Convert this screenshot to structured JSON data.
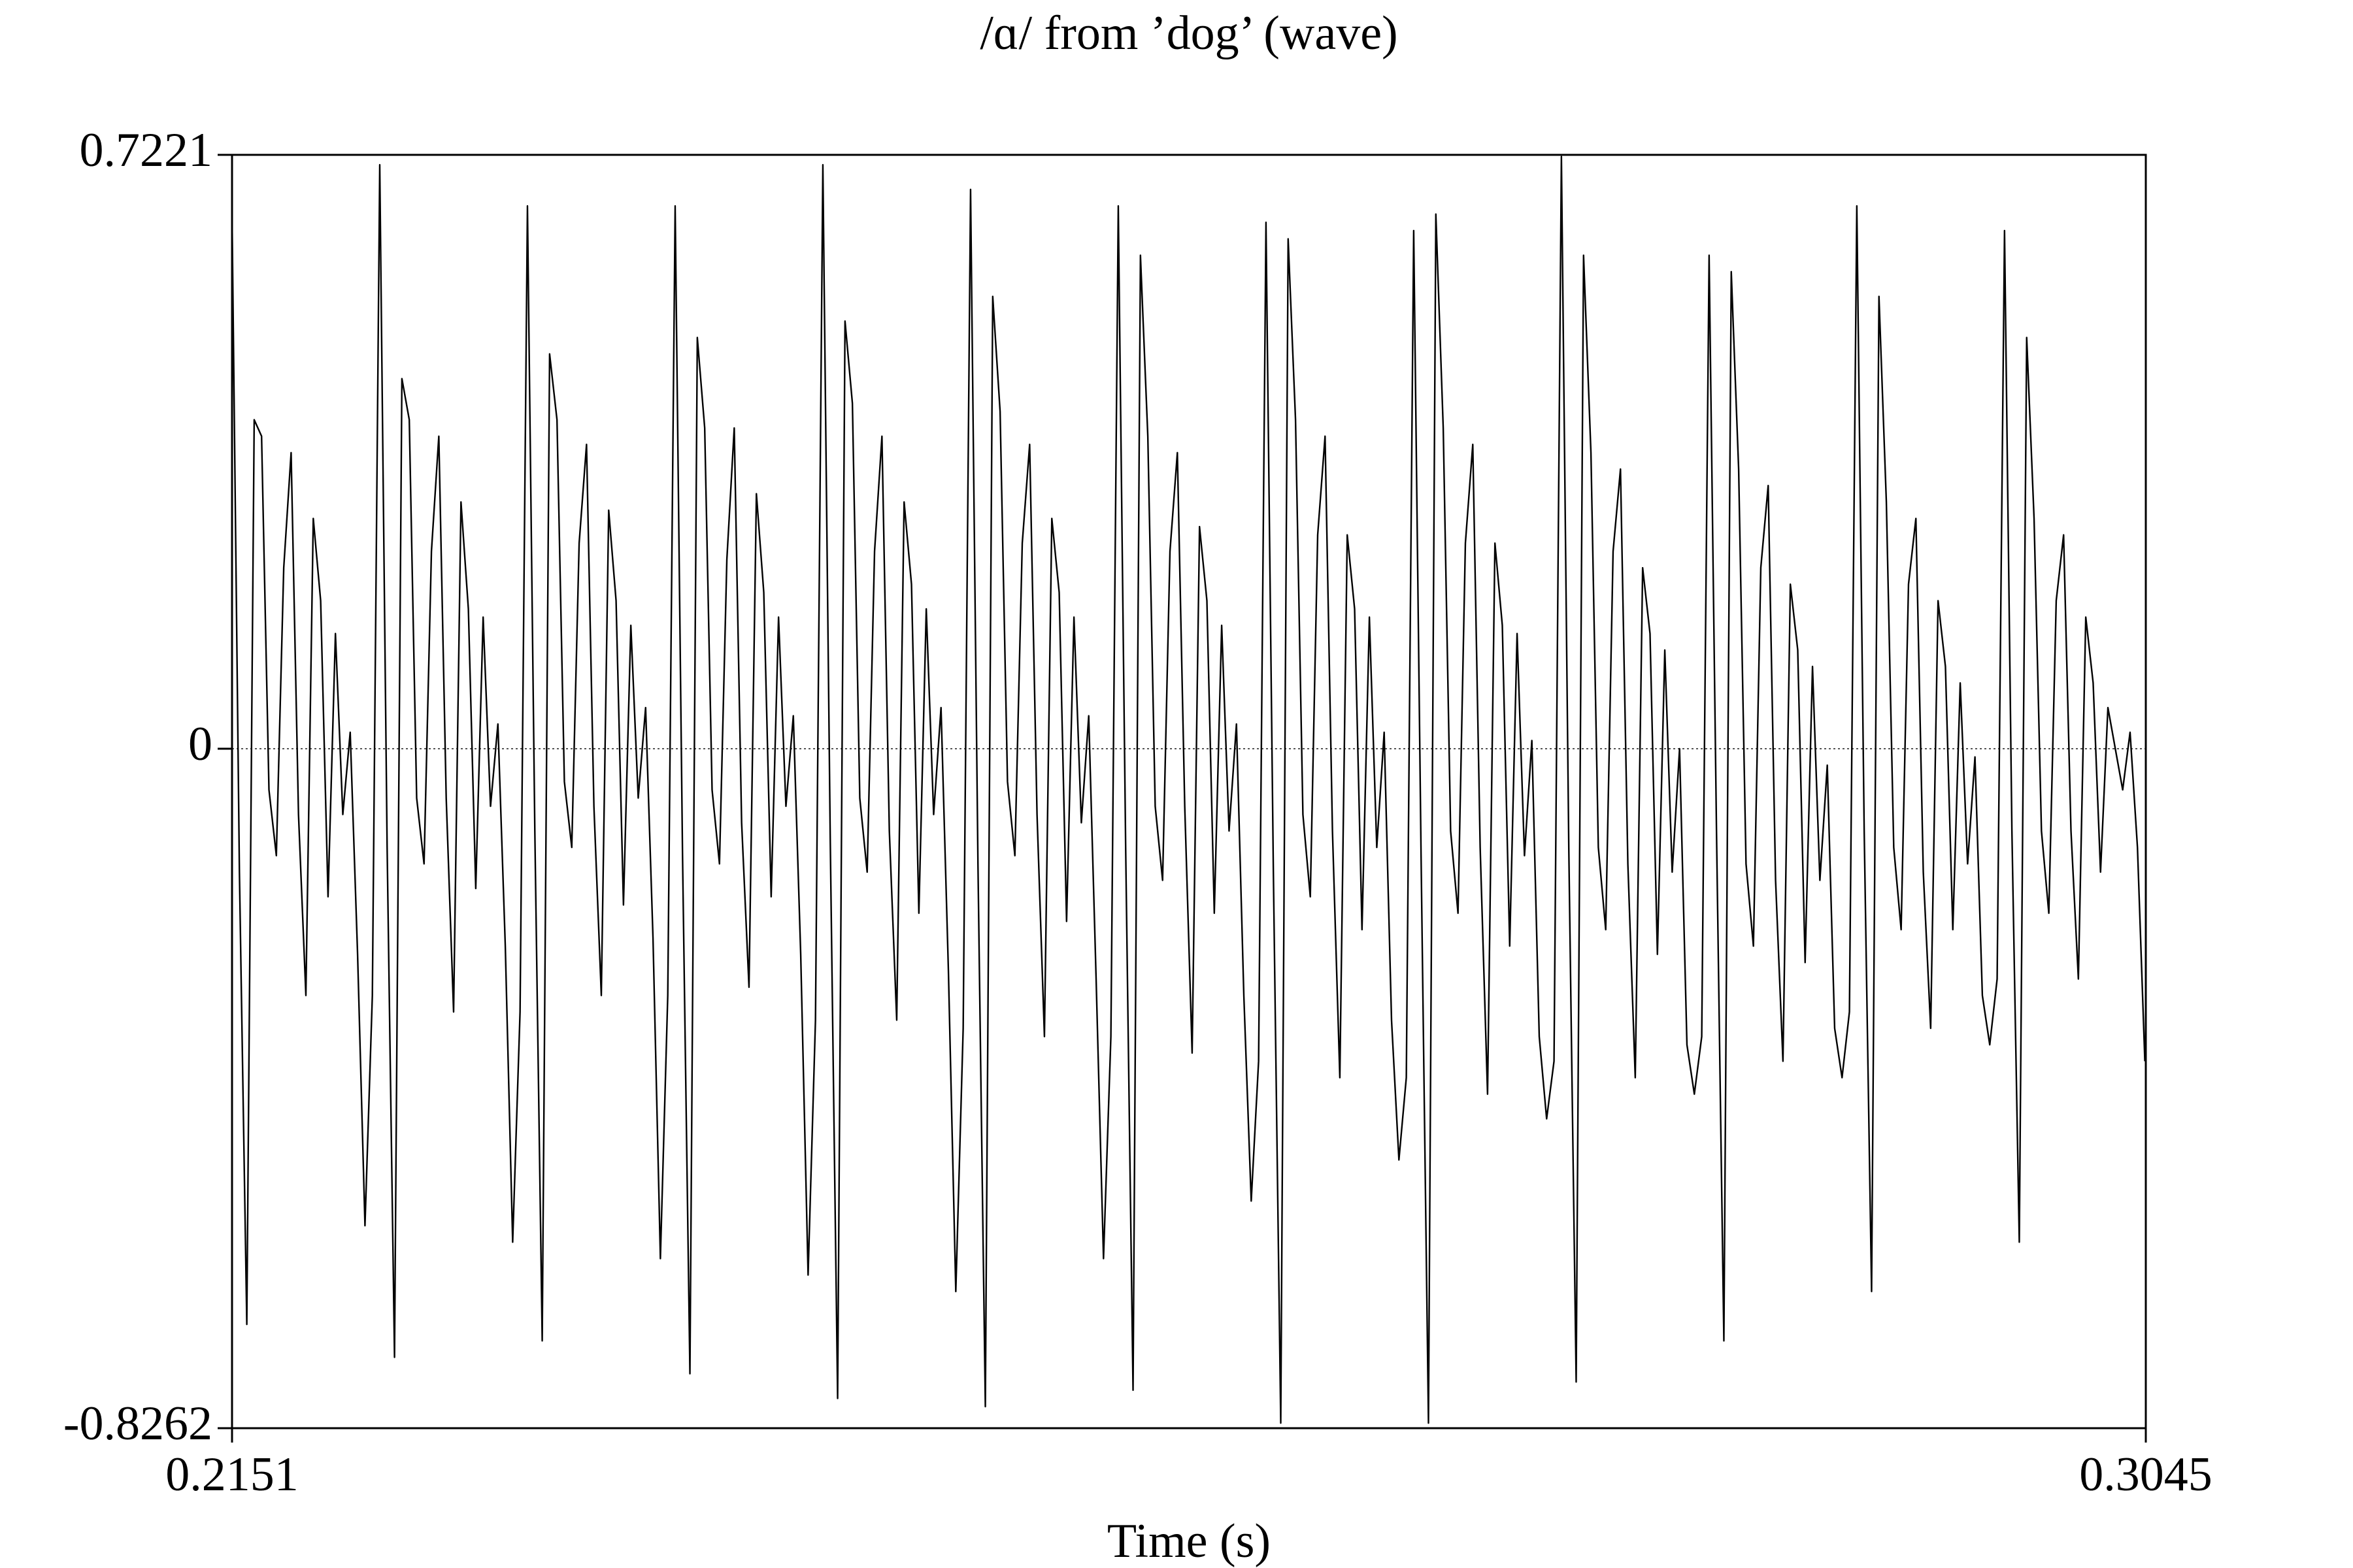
{
  "chart_data": {
    "type": "line",
    "title": "/ɑ/ from ’dog’ (wave)",
    "x_label": "Time (s)",
    "xlim": [
      0.2151,
      0.3045
    ],
    "xticks": [
      0.2151,
      0.3045
    ],
    "ylim": [
      -0.8262,
      0.7221
    ],
    "yticks": [
      -0.8262,
      0,
      0.7221
    ],
    "zero_line": true,
    "series": [
      {
        "color": "#000000",
        "x": [
          0.2151,
          0.215445,
          0.21579,
          0.216135,
          0.21648,
          0.216825,
          0.21717,
          0.217515,
          0.21786,
          0.218205,
          0.21855,
          0.218895,
          0.21924,
          0.219585,
          0.21993,
          0.220275,
          0.22062,
          0.220965,
          0.22131,
          0.221655,
          0.222,
          0.222345,
          0.22269,
          0.223035,
          0.22338,
          0.223725,
          0.22407,
          0.224415,
          0.22476,
          0.225105,
          0.22545,
          0.225795,
          0.22614,
          0.226485,
          0.22683,
          0.227175,
          0.22752,
          0.227865,
          0.22821,
          0.228555,
          0.2289,
          0.229245,
          0.22959,
          0.229935,
          0.23028,
          0.230625,
          0.23097,
          0.231315,
          0.23166,
          0.232005,
          0.23235,
          0.232695,
          0.23304,
          0.233385,
          0.23373,
          0.234075,
          0.23442,
          0.234765,
          0.23511,
          0.235455,
          0.2358,
          0.236145,
          0.23649,
          0.236835,
          0.23718,
          0.237525,
          0.23787,
          0.238215,
          0.23856,
          0.238905,
          0.23925,
          0.239595,
          0.23994,
          0.240285,
          0.24063,
          0.240975,
          0.24132,
          0.241665,
          0.24201,
          0.242355,
          0.2427,
          0.243045,
          0.24339,
          0.243735,
          0.24408,
          0.244425,
          0.24477,
          0.245115,
          0.24546,
          0.245805,
          0.24615,
          0.246495,
          0.24684,
          0.247185,
          0.24753,
          0.247875,
          0.24822,
          0.248565,
          0.24891,
          0.249255,
          0.2496,
          0.249945,
          0.25029,
          0.250635,
          0.25098,
          0.251325,
          0.25167,
          0.252015,
          0.25236,
          0.252705,
          0.25305,
          0.253395,
          0.25374,
          0.254085,
          0.25443,
          0.254775,
          0.25512,
          0.255465,
          0.25581,
          0.256155,
          0.2565,
          0.256845,
          0.25719,
          0.257535,
          0.25788,
          0.258225,
          0.25857,
          0.258915,
          0.25926,
          0.259605,
          0.25995,
          0.260295,
          0.26064,
          0.260985,
          0.26133,
          0.261675,
          0.26202,
          0.262365,
          0.26271,
          0.263055,
          0.2634,
          0.263745,
          0.26409,
          0.264435,
          0.26478,
          0.265125,
          0.26547,
          0.265815,
          0.26616,
          0.266505,
          0.26685,
          0.267195,
          0.26754,
          0.267885,
          0.26823,
          0.268575,
          0.26892,
          0.269265,
          0.26961,
          0.269955,
          0.2703,
          0.270645,
          0.27099,
          0.271335,
          0.27168,
          0.272025,
          0.27237,
          0.272715,
          0.27306,
          0.273405,
          0.27375,
          0.274095,
          0.27444,
          0.274785,
          0.27513,
          0.275475,
          0.27582,
          0.276165,
          0.27651,
          0.276855,
          0.2772,
          0.277545,
          0.27789,
          0.278235,
          0.27858,
          0.278925,
          0.27927,
          0.279615,
          0.27996,
          0.280305,
          0.28065,
          0.280995,
          0.28134,
          0.281685,
          0.28203,
          0.282375,
          0.28272,
          0.283065,
          0.28341,
          0.283755,
          0.2841,
          0.284445,
          0.28479,
          0.285135,
          0.28548,
          0.285825,
          0.28617,
          0.286515,
          0.28686,
          0.287205,
          0.28755,
          0.287895,
          0.28824,
          0.288585,
          0.28893,
          0.289275,
          0.28962,
          0.289965,
          0.29031,
          0.290655,
          0.291,
          0.291345,
          0.29169,
          0.292035,
          0.29238,
          0.292725,
          0.29307,
          0.293415,
          0.29376,
          0.294105,
          0.29445,
          0.294795,
          0.29514,
          0.295485,
          0.29583,
          0.296175,
          0.29652,
          0.296865,
          0.29721,
          0.297555,
          0.2979,
          0.298245,
          0.29859,
          0.298935,
          0.29928,
          0.299625,
          0.29997,
          0.300315,
          0.30066,
          0.301005,
          0.30135,
          0.301695,
          0.30204,
          0.302385,
          0.30273,
          0.303075,
          0.30342,
          0.303765,
          0.30411,
          0.304455
        ],
        "values": [
          0.65,
          -0.15,
          -0.7,
          0.4,
          0.38,
          -0.05,
          -0.13,
          0.22,
          0.36,
          -0.08,
          -0.3,
          0.28,
          0.18,
          -0.18,
          0.14,
          -0.08,
          0.02,
          -0.25,
          -0.58,
          -0.3,
          0.71,
          -0.12,
          -0.74,
          0.45,
          0.4,
          -0.06,
          -0.14,
          0.24,
          0.38,
          -0.06,
          -0.32,
          0.3,
          0.17,
          -0.17,
          0.16,
          -0.07,
          0.03,
          -0.24,
          -0.6,
          -0.32,
          0.66,
          -0.1,
          -0.72,
          0.48,
          0.4,
          -0.04,
          -0.12,
          0.25,
          0.37,
          -0.07,
          -0.3,
          0.29,
          0.18,
          -0.19,
          0.15,
          -0.06,
          0.05,
          -0.23,
          -0.62,
          -0.3,
          0.66,
          -0.13,
          -0.76,
          0.5,
          0.39,
          -0.05,
          -0.14,
          0.23,
          0.39,
          -0.09,
          -0.29,
          0.31,
          0.19,
          -0.18,
          0.16,
          -0.07,
          0.04,
          -0.25,
          -0.64,
          -0.33,
          0.71,
          -0.11,
          -0.79,
          0.52,
          0.42,
          -0.06,
          -0.15,
          0.24,
          0.38,
          -0.1,
          -0.33,
          0.3,
          0.2,
          -0.2,
          0.17,
          -0.08,
          0.05,
          -0.27,
          -0.66,
          -0.34,
          0.68,
          -0.14,
          -0.8,
          0.55,
          0.41,
          -0.04,
          -0.13,
          0.25,
          0.37,
          -0.08,
          -0.35,
          0.28,
          0.19,
          -0.21,
          0.16,
          -0.09,
          0.04,
          -0.28,
          -0.62,
          -0.35,
          0.66,
          -0.12,
          -0.78,
          0.6,
          0.38,
          -0.07,
          -0.16,
          0.24,
          0.36,
          -0.07,
          -0.37,
          0.27,
          0.18,
          -0.2,
          0.15,
          -0.1,
          0.03,
          -0.3,
          -0.55,
          -0.38,
          0.64,
          -0.15,
          -0.82,
          0.62,
          0.4,
          -0.08,
          -0.18,
          0.26,
          0.38,
          -0.1,
          -0.4,
          0.26,
          0.17,
          -0.22,
          0.16,
          -0.12,
          0.02,
          -0.33,
          -0.5,
          -0.4,
          0.63,
          -0.13,
          -0.82,
          0.65,
          0.39,
          -0.1,
          -0.2,
          0.25,
          0.37,
          -0.12,
          -0.42,
          0.25,
          0.15,
          -0.24,
          0.14,
          -0.13,
          0.01,
          -0.35,
          -0.45,
          -0.38,
          0.72,
          -0.12,
          -0.77,
          0.6,
          0.36,
          -0.12,
          -0.22,
          0.24,
          0.34,
          -0.14,
          -0.4,
          0.22,
          0.14,
          -0.25,
          0.12,
          -0.15,
          0.0,
          -0.36,
          -0.42,
          -0.35,
          0.6,
          -0.1,
          -0.72,
          0.58,
          0.34,
          -0.14,
          -0.24,
          0.22,
          0.32,
          -0.16,
          -0.38,
          0.2,
          0.12,
          -0.26,
          0.1,
          -0.16,
          -0.02,
          -0.34,
          -0.4,
          -0.32,
          0.66,
          -0.1,
          -0.66,
          0.55,
          0.3,
          -0.12,
          -0.22,
          0.2,
          0.28,
          -0.15,
          -0.34,
          0.18,
          0.1,
          -0.22,
          0.08,
          -0.14,
          -0.01,
          -0.3,
          -0.36,
          -0.28,
          0.63,
          -0.1,
          -0.6,
          0.5,
          0.28,
          -0.1,
          -0.2,
          0.18,
          0.26,
          -0.1,
          -0.28,
          0.16,
          0.08,
          -0.15,
          0.05,
          0.0,
          -0.05,
          0.02,
          -0.12,
          -0.38
        ]
      }
    ]
  }
}
